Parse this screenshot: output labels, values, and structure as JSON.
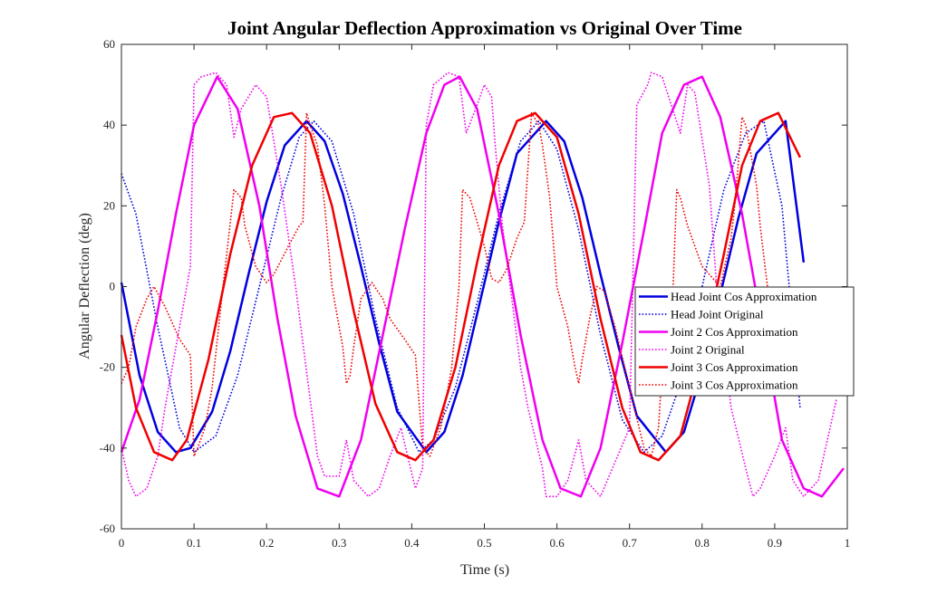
{
  "chart_data": {
    "type": "line",
    "title": "Joint Angular Deflection Approximation vs Original Over Time",
    "xlabel": "Time (s)",
    "ylabel": "Angular Deflection (deg)",
    "xlim": [
      0,
      1
    ],
    "ylim": [
      -60,
      60
    ],
    "xticks": [
      0,
      0.1,
      0.2,
      0.3,
      0.4,
      0.5,
      0.6,
      0.7,
      0.8,
      0.9,
      1
    ],
    "yticks": [
      -60,
      -40,
      -20,
      0,
      20,
      40,
      60
    ],
    "grid": false,
    "legend_position": "center-right",
    "series": [
      {
        "name": "Head Joint Cos Approximation",
        "color": "#0000e0",
        "style": "solid",
        "x": [
          0,
          0.025,
          0.05,
          0.075,
          0.095,
          0.125,
          0.15,
          0.175,
          0.2,
          0.225,
          0.255,
          0.28,
          0.305,
          0.33,
          0.355,
          0.38,
          0.42,
          0.445,
          0.47,
          0.495,
          0.52,
          0.545,
          0.585,
          0.61,
          0.635,
          0.66,
          0.685,
          0.71,
          0.75,
          0.775,
          0.8,
          0.825,
          0.85,
          0.875,
          0.915,
          0.94
        ],
        "y": [
          1,
          -22,
          -36,
          -41,
          -40,
          -31,
          -16,
          3,
          21,
          35,
          41,
          36,
          23,
          5,
          -14,
          -31,
          -41,
          -36,
          -22,
          -3,
          16,
          33,
          41,
          36,
          22,
          3,
          -15,
          -32,
          -41,
          -36,
          -21,
          -2,
          17,
          33,
          41,
          6
        ]
      },
      {
        "name": "Head Joint Original",
        "color": "#0000e0",
        "style": "dotted",
        "x": [
          0,
          0.02,
          0.05,
          0.08,
          0.1,
          0.13,
          0.16,
          0.19,
          0.22,
          0.245,
          0.265,
          0.29,
          0.32,
          0.35,
          0.38,
          0.41,
          0.43,
          0.46,
          0.49,
          0.52,
          0.55,
          0.575,
          0.6,
          0.63,
          0.66,
          0.69,
          0.72,
          0.745,
          0.77,
          0.8,
          0.83,
          0.86,
          0.885,
          0.91,
          0.935
        ],
        "y": [
          28,
          18,
          -10,
          -35,
          -41,
          -37,
          -22,
          0,
          22,
          37,
          41,
          36,
          18,
          -8,
          -30,
          -41,
          -38,
          -25,
          -4,
          18,
          36,
          41,
          34,
          14,
          -12,
          -33,
          -41,
          -37,
          -24,
          0,
          24,
          38,
          41,
          20,
          -30
        ]
      },
      {
        "name": "Joint 2 Cos Approximation",
        "color": "#f000f0",
        "style": "solid",
        "x": [
          0,
          0.025,
          0.05,
          0.075,
          0.1,
          0.132,
          0.16,
          0.19,
          0.215,
          0.24,
          0.27,
          0.3,
          0.33,
          0.36,
          0.39,
          0.42,
          0.445,
          0.466,
          0.49,
          0.52,
          0.55,
          0.58,
          0.605,
          0.633,
          0.66,
          0.69,
          0.72,
          0.745,
          0.775,
          0.8,
          0.825,
          0.855,
          0.885,
          0.91,
          0.94,
          0.965,
          0.995
        ],
        "y": [
          -41,
          -28,
          -6,
          18,
          40,
          52,
          44,
          20,
          -8,
          -32,
          -50,
          -52,
          -38,
          -12,
          14,
          38,
          50,
          52,
          44,
          18,
          -12,
          -38,
          -50,
          -52,
          -40,
          -14,
          14,
          38,
          50,
          52,
          42,
          18,
          -12,
          -38,
          -50,
          -52,
          -45
        ]
      },
      {
        "name": "Joint 2 Original",
        "color": "#f000f0",
        "style": "dotted",
        "x": [
          0,
          0.01,
          0.02,
          0.035,
          0.05,
          0.06,
          0.08,
          0.095,
          0.1,
          0.11,
          0.13,
          0.145,
          0.155,
          0.165,
          0.185,
          0.2,
          0.22,
          0.24,
          0.26,
          0.27,
          0.28,
          0.3,
          0.31,
          0.32,
          0.34,
          0.355,
          0.37,
          0.385,
          0.405,
          0.415,
          0.42,
          0.43,
          0.45,
          0.465,
          0.475,
          0.49,
          0.5,
          0.51,
          0.515,
          0.525,
          0.55,
          0.56,
          0.58,
          0.585,
          0.6,
          0.615,
          0.63,
          0.64,
          0.66,
          0.7,
          0.71,
          0.725,
          0.73,
          0.745,
          0.77,
          0.775,
          0.78,
          0.79,
          0.81,
          0.82,
          0.84,
          0.86,
          0.87,
          0.88,
          0.9,
          0.915,
          0.925,
          0.94,
          0.96,
          0.97,
          0.985
        ],
        "y": [
          -40,
          -48,
          -52,
          -50,
          -42,
          -30,
          -10,
          5,
          50,
          52,
          53,
          50,
          37,
          44,
          50,
          47,
          25,
          0,
          -28,
          -42,
          -47,
          -47,
          -38,
          -48,
          -52,
          -50,
          -42,
          -35,
          -50,
          -45,
          40,
          50,
          53,
          52,
          38,
          45,
          50,
          47,
          35,
          15,
          -20,
          -30,
          -45,
          -52,
          -52,
          -48,
          -38,
          -48,
          -52,
          -35,
          45,
          50,
          53,
          52,
          38,
          44,
          50,
          48,
          25,
          0,
          -30,
          -45,
          -52,
          -50,
          -42,
          -35,
          -48,
          -52,
          -48,
          -40,
          -28
        ]
      },
      {
        "name": "Joint 3 Cos Approximation",
        "color": "#f00000",
        "style": "solid",
        "x": [
          0,
          0.02,
          0.045,
          0.07,
          0.09,
          0.12,
          0.15,
          0.18,
          0.21,
          0.235,
          0.26,
          0.29,
          0.32,
          0.35,
          0.38,
          0.405,
          0.43,
          0.46,
          0.49,
          0.52,
          0.545,
          0.57,
          0.6,
          0.63,
          0.66,
          0.69,
          0.715,
          0.74,
          0.77,
          0.8,
          0.83,
          0.855,
          0.88,
          0.905,
          0.935
        ],
        "y": [
          -12,
          -30,
          -41,
          -43,
          -38,
          -18,
          8,
          30,
          42,
          43,
          38,
          20,
          -6,
          -29,
          -41,
          -43,
          -38,
          -20,
          6,
          30,
          41,
          43,
          37,
          18,
          -8,
          -30,
          -41,
          -43,
          -37,
          -17,
          8,
          30,
          41,
          43,
          32
        ]
      },
      {
        "name": "Joint 3 Cos Approximation",
        "color": "#f00000",
        "style": "dotted",
        "x": [
          0,
          0.01,
          0.02,
          0.035,
          0.045,
          0.06,
          0.08,
          0.095,
          0.1,
          0.105,
          0.115,
          0.125,
          0.14,
          0.155,
          0.165,
          0.17,
          0.185,
          0.2,
          0.21,
          0.23,
          0.245,
          0.25,
          0.255,
          0.26,
          0.27,
          0.28,
          0.29,
          0.305,
          0.31,
          0.315,
          0.32,
          0.33,
          0.345,
          0.36,
          0.37,
          0.39,
          0.405,
          0.415,
          0.425,
          0.44,
          0.455,
          0.465,
          0.47,
          0.48,
          0.5,
          0.51,
          0.52,
          0.53,
          0.545,
          0.555,
          0.565,
          0.575,
          0.58,
          0.59,
          0.6,
          0.615,
          0.625,
          0.63,
          0.635,
          0.645,
          0.655,
          0.665,
          0.68,
          0.7,
          0.72,
          0.73,
          0.74,
          0.745,
          0.76,
          0.765,
          0.77,
          0.78,
          0.8,
          0.825,
          0.84,
          0.845,
          0.855,
          0.86,
          0.865,
          0.875,
          0.88,
          0.89
        ],
        "y": [
          -24,
          -20,
          -10,
          -3,
          0,
          -5,
          -13,
          -17,
          -42,
          -40,
          -35,
          -25,
          0,
          24,
          22,
          15,
          5,
          1,
          3,
          10,
          15,
          16,
          43,
          40,
          35,
          20,
          0,
          -15,
          -24,
          -22,
          -15,
          -3,
          1,
          -3,
          -8,
          -13,
          -17,
          -40,
          -42,
          -35,
          -20,
          0,
          24,
          22,
          10,
          2,
          1,
          4,
          12,
          16,
          43,
          40,
          35,
          22,
          0,
          -10,
          -20,
          -24,
          -18,
          -8,
          0,
          -1,
          -10,
          -25,
          -40,
          -42,
          -35,
          -20,
          0,
          24,
          22,
          15,
          5,
          0,
          12,
          20,
          42,
          40,
          35,
          25,
          15,
          0
        ]
      }
    ]
  }
}
